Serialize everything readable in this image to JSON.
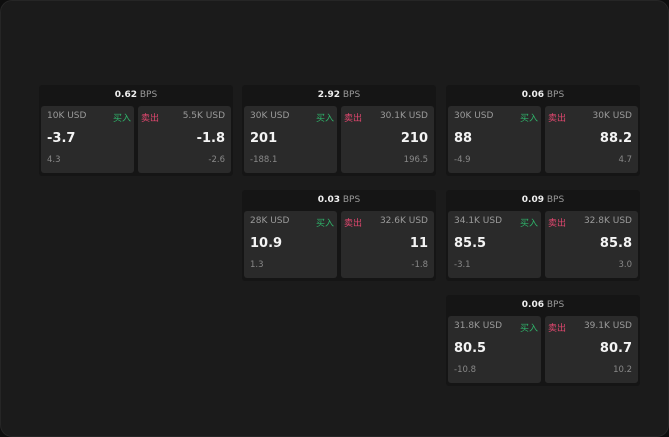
{
  "labels": {
    "unit": "BPS",
    "buy": "买入",
    "sell": "卖出"
  },
  "colors": {
    "buy": "#2fb36a",
    "sell": "#e0476f"
  },
  "cards": [
    {
      "bps": "0.62",
      "buy": {
        "amount": "10K USD",
        "price": "-3.7",
        "change": "4.3"
      },
      "sell": {
        "amount": "5.5K USD",
        "price": "-1.8",
        "change": "-2.6"
      }
    },
    {
      "bps": "2.92",
      "buy": {
        "amount": "30K USD",
        "price": "201",
        "change": "-188.1"
      },
      "sell": {
        "amount": "30.1K USD",
        "price": "210",
        "change": "196.5"
      }
    },
    {
      "bps": "0.06",
      "buy": {
        "amount": "30K USD",
        "price": "88",
        "change": "-4.9"
      },
      "sell": {
        "amount": "30K USD",
        "price": "88.2",
        "change": "4.7"
      }
    },
    {
      "bps": "0.03",
      "buy": {
        "amount": "28K USD",
        "price": "10.9",
        "change": "1.3"
      },
      "sell": {
        "amount": "32.6K USD",
        "price": "11",
        "change": "-1.8"
      }
    },
    {
      "bps": "0.09",
      "buy": {
        "amount": "34.1K USD",
        "price": "85.5",
        "change": "-3.1"
      },
      "sell": {
        "amount": "32.8K USD",
        "price": "85.8",
        "change": "3.0"
      }
    },
    {
      "bps": "0.06",
      "buy": {
        "amount": "31.8K USD",
        "price": "80.5",
        "change": "-10.8"
      },
      "sell": {
        "amount": "39.1K USD",
        "price": "80.7",
        "change": "10.2"
      }
    }
  ]
}
